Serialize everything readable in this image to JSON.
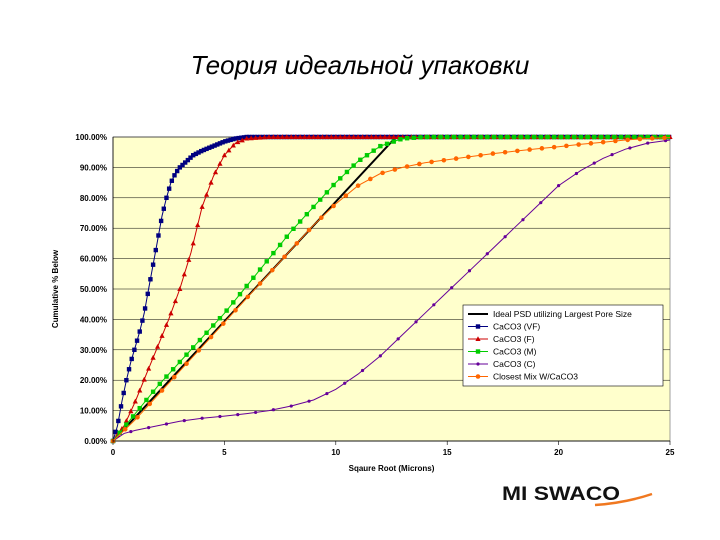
{
  "page": {
    "title": "Теория идеальной упаковки",
    "logo_text": "MI SWACO"
  },
  "chart_data": {
    "type": "line",
    "title": "",
    "xlabel": "Sqaure Root (Microns)",
    "ylabel": "Cumulative % Below",
    "xlim": [
      0,
      25
    ],
    "ylim": [
      0,
      100
    ],
    "x_ticks": [
      "0",
      "5",
      "10",
      "15",
      "20",
      "25"
    ],
    "y_ticks": [
      "0.00%",
      "10.00%",
      "20.00%",
      "30.00%",
      "40.00%",
      "50.00%",
      "60.00%",
      "70.00%",
      "80.00%",
      "90.00%",
      "100.00%"
    ],
    "grid": "horizontal",
    "plot_background": "#ffffcc",
    "legend_position": "lower-right",
    "series": [
      {
        "name": "Ideal PSD utilizing Largest Pore Size",
        "color": "#000000",
        "marker": "none",
        "points": [
          [
            0,
            0
          ],
          [
            12.7,
            100
          ],
          [
            25,
            100
          ]
        ]
      },
      {
        "name": "CaCO3 (VF)",
        "color": "#000080",
        "marker": "square",
        "points": [
          [
            0,
            0
          ],
          [
            0.2,
            5
          ],
          [
            0.4,
            13
          ],
          [
            0.6,
            20
          ],
          [
            0.8,
            26
          ],
          [
            1.0,
            31
          ],
          [
            1.2,
            36
          ],
          [
            1.4,
            42
          ],
          [
            1.6,
            50
          ],
          [
            1.8,
            58
          ],
          [
            2.0,
            66
          ],
          [
            2.2,
            74
          ],
          [
            2.4,
            80
          ],
          [
            2.6,
            85
          ],
          [
            2.8,
            88
          ],
          [
            3.0,
            90
          ],
          [
            3.3,
            92
          ],
          [
            3.6,
            94
          ],
          [
            4.0,
            95.5
          ],
          [
            4.5,
            97
          ],
          [
            5.0,
            98.5
          ],
          [
            5.5,
            99.5
          ],
          [
            6.0,
            100
          ],
          [
            25,
            100
          ]
        ]
      },
      {
        "name": "CaCO3 (F)",
        "color": "#cc0000",
        "marker": "triangle",
        "points": [
          [
            0,
            0
          ],
          [
            0.5,
            5
          ],
          [
            1.0,
            13
          ],
          [
            1.5,
            22
          ],
          [
            2.0,
            31
          ],
          [
            2.5,
            40
          ],
          [
            3.0,
            50
          ],
          [
            3.5,
            62
          ],
          [
            4.0,
            77
          ],
          [
            4.5,
            87
          ],
          [
            5.0,
            94
          ],
          [
            5.5,
            98
          ],
          [
            6.0,
            99.5
          ],
          [
            7.0,
            100
          ],
          [
            25,
            100
          ]
        ]
      },
      {
        "name": "CaCO3 (M)",
        "color": "#00cc00",
        "marker": "square",
        "points": [
          [
            0,
            0
          ],
          [
            1,
            9
          ],
          [
            2,
            18
          ],
          [
            3,
            26
          ],
          [
            4,
            34
          ],
          [
            5,
            42
          ],
          [
            6,
            51
          ],
          [
            7,
            60
          ],
          [
            8,
            69
          ],
          [
            9,
            77
          ],
          [
            10,
            85
          ],
          [
            11,
            92
          ],
          [
            12,
            97
          ],
          [
            13,
            99.5
          ],
          [
            14,
            100
          ],
          [
            25,
            100
          ]
        ]
      },
      {
        "name": "CaCO3 (C)",
        "color": "#660099",
        "marker": "dot",
        "points": [
          [
            0,
            0
          ],
          [
            0.5,
            2.5
          ],
          [
            1,
            3.5
          ],
          [
            2,
            5
          ],
          [
            3,
            6.5
          ],
          [
            4,
            7.5
          ],
          [
            5,
            8.2
          ],
          [
            6,
            9
          ],
          [
            7,
            10
          ],
          [
            8,
            11.5
          ],
          [
            9,
            13.5
          ],
          [
            10,
            17
          ],
          [
            11,
            22
          ],
          [
            12,
            28
          ],
          [
            13,
            35
          ],
          [
            14,
            42
          ],
          [
            15,
            49
          ],
          [
            16,
            56
          ],
          [
            17,
            63
          ],
          [
            18,
            70
          ],
          [
            19,
            77
          ],
          [
            20,
            84
          ],
          [
            21,
            89
          ],
          [
            22,
            93
          ],
          [
            23,
            96
          ],
          [
            24,
            98
          ],
          [
            25,
            99
          ]
        ]
      },
      {
        "name": "Closest Mix W/CaCO3",
        "color": "#ff6600",
        "marker": "circle",
        "points": [
          [
            0,
            0
          ],
          [
            1,
            7
          ],
          [
            2,
            15
          ],
          [
            3,
            23
          ],
          [
            4,
            31
          ],
          [
            5,
            39
          ],
          [
            6,
            47
          ],
          [
            7,
            55
          ],
          [
            8,
            63
          ],
          [
            9,
            71
          ],
          [
            10,
            78
          ],
          [
            11,
            84
          ],
          [
            12,
            88
          ],
          [
            13,
            90
          ],
          [
            14,
            91.5
          ],
          [
            15,
            92.5
          ],
          [
            16,
            93.5
          ],
          [
            17,
            94.5
          ],
          [
            18,
            95.3
          ],
          [
            19,
            96.1
          ],
          [
            20,
            96.8
          ],
          [
            21,
            97.6
          ],
          [
            22,
            98.3
          ],
          [
            23,
            99
          ],
          [
            24,
            99.5
          ],
          [
            25,
            99.8
          ]
        ]
      }
    ]
  }
}
